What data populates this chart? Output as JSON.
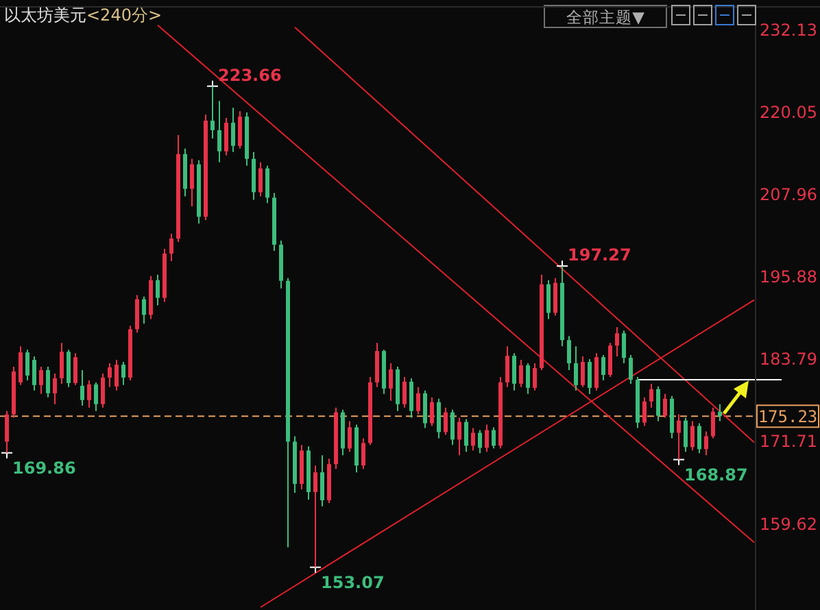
{
  "chart_data": {
    "type": "candlestick",
    "title": "以太坊美元",
    "subtitle": "<240分>",
    "categories": [
      null,
      null,
      null,
      null,
      null,
      null,
      null,
      null,
      null,
      null,
      null,
      null,
      null,
      null,
      null,
      null,
      null,
      null,
      null,
      null,
      null,
      null,
      null,
      null,
      null,
      null,
      null,
      null,
      null,
      null,
      null,
      null,
      null,
      null,
      null,
      null,
      null,
      null,
      null,
      null,
      null,
      null,
      null,
      null,
      null,
      null,
      null,
      null,
      null,
      null,
      null,
      null,
      null,
      null,
      null,
      null,
      null,
      null,
      null,
      null,
      null,
      null,
      null,
      null,
      null,
      null,
      null,
      null,
      null,
      null,
      null,
      null,
      null,
      null,
      null,
      null,
      null,
      null,
      null,
      null,
      null,
      null,
      null,
      null,
      null,
      null,
      null,
      null,
      null,
      null,
      null,
      null,
      null,
      null,
      null,
      null,
      null,
      null,
      null,
      null,
      null,
      null,
      null,
      null,
      null,
      null,
      null,
      null,
      null,
      null,
      null,
      null,
      null,
      null
    ],
    "ohlc": [
      [
        171.5,
        176.0,
        169.86,
        175.5
      ],
      [
        175.5,
        182.5,
        175.0,
        181.8
      ],
      [
        180.2,
        185.5,
        179.8,
        184.6
      ],
      [
        184.6,
        185.0,
        180.5,
        181.2
      ],
      [
        183.5,
        184.0,
        179.0,
        179.8
      ],
      [
        179.8,
        182.5,
        178.5,
        182.0
      ],
      [
        182.0,
        182.5,
        178.0,
        178.6
      ],
      [
        178.6,
        181.5,
        177.0,
        180.8
      ],
      [
        180.8,
        186.0,
        180.0,
        184.7
      ],
      [
        184.7,
        185.0,
        179.5,
        180.1
      ],
      [
        180.1,
        184.5,
        179.8,
        183.9
      ],
      [
        179.7,
        182.0,
        176.8,
        177.6
      ],
      [
        177.6,
        180.5,
        176.5,
        179.9
      ],
      [
        179.9,
        180.2,
        176.0,
        177.0
      ],
      [
        177.0,
        181.5,
        176.5,
        180.9
      ],
      [
        180.9,
        183.0,
        179.5,
        182.4
      ],
      [
        179.6,
        183.5,
        179.0,
        182.8
      ],
      [
        182.8,
        183.2,
        179.8,
        180.9
      ],
      [
        180.9,
        188.5,
        180.5,
        188.0
      ],
      [
        188.0,
        193.0,
        187.5,
        192.4
      ],
      [
        192.4,
        192.8,
        188.8,
        190.1
      ],
      [
        190.1,
        195.8,
        189.5,
        195.2
      ],
      [
        195.2,
        196.0,
        191.5,
        192.6
      ],
      [
        192.6,
        199.8,
        192.0,
        199.1
      ],
      [
        199.1,
        202.0,
        198.0,
        201.3
      ],
      [
        201.3,
        216.5,
        200.8,
        213.7
      ],
      [
        213.7,
        214.5,
        207.5,
        208.6
      ],
      [
        208.6,
        213.0,
        206.0,
        212.2
      ],
      [
        212.2,
        212.8,
        203.5,
        204.5
      ],
      [
        204.5,
        219.5,
        204.0,
        218.6
      ],
      [
        218.6,
        223.66,
        216.0,
        217.2
      ],
      [
        217.2,
        221.5,
        212.5,
        214.1
      ],
      [
        214.1,
        219.0,
        213.5,
        218.3
      ],
      [
        218.3,
        220.5,
        214.0,
        214.9
      ],
      [
        214.9,
        220.0,
        214.5,
        219.2
      ],
      [
        219.2,
        219.8,
        212.0,
        213.0
      ],
      [
        213.0,
        214.0,
        207.0,
        208.1
      ],
      [
        208.1,
        212.5,
        207.5,
        211.6
      ],
      [
        211.6,
        212.0,
        206.5,
        207.3
      ],
      [
        207.3,
        208.0,
        199.5,
        200.4
      ],
      [
        200.4,
        201.0,
        194.0,
        195.1
      ],
      [
        195.1,
        195.5,
        156.0,
        171.5
      ],
      [
        171.5,
        172.3,
        164.0,
        165.3
      ],
      [
        165.3,
        171.0,
        164.5,
        170.2
      ],
      [
        170.2,
        170.8,
        163.0,
        164.1
      ],
      [
        164.1,
        168.0,
        153.07,
        167.0
      ],
      [
        167.0,
        169.5,
        162.0,
        162.9
      ],
      [
        162.9,
        169.0,
        162.5,
        168.2
      ],
      [
        168.2,
        176.5,
        167.5,
        175.8
      ],
      [
        175.8,
        176.2,
        169.5,
        170.5
      ],
      [
        170.5,
        174.5,
        170.0,
        173.6
      ],
      [
        173.6,
        174.0,
        167.0,
        168.0
      ],
      [
        168.0,
        172.0,
        167.5,
        171.3
      ],
      [
        171.3,
        181.0,
        171.0,
        180.2
      ],
      [
        180.2,
        186.0,
        179.5,
        184.8
      ],
      [
        184.8,
        185.0,
        178.5,
        179.3
      ],
      [
        179.3,
        183.0,
        177.5,
        182.1
      ],
      [
        182.1,
        182.5,
        176.0,
        177.0
      ],
      [
        177.0,
        181.0,
        176.5,
        180.3
      ],
      [
        180.3,
        180.8,
        175.0,
        176.0
      ],
      [
        176.0,
        179.5,
        175.5,
        178.6
      ],
      [
        178.6,
        179.0,
        173.5,
        174.2
      ],
      [
        174.2,
        178.0,
        173.8,
        177.3
      ],
      [
        177.3,
        177.8,
        172.0,
        172.9
      ],
      [
        172.9,
        176.5,
        172.5,
        175.8
      ],
      [
        175.8,
        176.2,
        171.0,
        171.8
      ],
      [
        171.8,
        175.0,
        169.5,
        174.4
      ],
      [
        174.4,
        174.8,
        170.0,
        170.9
      ],
      [
        170.9,
        173.5,
        170.2,
        172.8
      ],
      [
        172.8,
        173.2,
        169.8,
        170.6
      ],
      [
        170.6,
        174.0,
        170.0,
        173.2
      ],
      [
        173.2,
        173.6,
        170.5,
        170.9
      ],
      [
        170.9,
        181.0,
        170.5,
        180.2
      ],
      [
        180.2,
        185.5,
        179.5,
        184.1
      ],
      [
        184.1,
        184.5,
        179.0,
        180.0
      ],
      [
        180.0,
        183.5,
        179.5,
        182.7
      ],
      [
        182.7,
        183.0,
        178.5,
        179.4
      ],
      [
        179.4,
        183.0,
        179.0,
        182.3
      ],
      [
        182.3,
        196.0,
        182.0,
        194.6
      ],
      [
        194.6,
        195.2,
        189.5,
        190.4
      ],
      [
        190.4,
        195.5,
        190.0,
        194.8
      ],
      [
        194.8,
        197.27,
        185.5,
        186.4
      ],
      [
        186.4,
        187.0,
        182.0,
        183.0
      ],
      [
        183.0,
        185.5,
        179.0,
        179.8
      ],
      [
        179.8,
        184.0,
        179.5,
        183.2
      ],
      [
        183.2,
        183.6,
        178.5,
        179.4
      ],
      [
        179.4,
        184.5,
        179.0,
        183.9
      ],
      [
        183.9,
        184.2,
        180.5,
        181.3
      ],
      [
        181.3,
        186.0,
        181.0,
        185.6
      ],
      [
        185.6,
        188.3,
        184.0,
        187.4
      ],
      [
        187.4,
        187.8,
        183.0,
        183.8
      ],
      [
        183.8,
        184.2,
        180.0,
        180.6
      ],
      [
        180.6,
        181.0,
        173.5,
        174.3
      ],
      [
        174.3,
        178.0,
        173.8,
        177.4
      ],
      [
        177.4,
        180.0,
        176.5,
        179.2
      ],
      [
        179.2,
        179.6,
        174.5,
        175.3
      ],
      [
        175.3,
        178.5,
        175.0,
        177.8
      ],
      [
        177.8,
        178.2,
        172.0,
        172.8
      ],
      [
        172.8,
        175.5,
        168.87,
        174.6
      ],
      [
        174.6,
        175.0,
        170.0,
        170.7
      ],
      [
        170.7,
        174.5,
        170.2,
        173.8
      ],
      [
        173.8,
        174.2,
        169.8,
        170.4
      ],
      [
        170.4,
        173.0,
        169.5,
        172.3
      ],
      [
        172.3,
        176.5,
        172.0,
        175.9
      ],
      [
        175.9,
        177.0,
        174.5,
        175.23
      ],
      null,
      null,
      null,
      null,
      null,
      null,
      null,
      null,
      null
    ],
    "colors": [
      "#e8334a",
      "#e8334a",
      "#e8334a",
      "#3dbd7d",
      "#3dbd7d",
      "#e8334a",
      "#3dbd7d",
      "#e8334a",
      "#e8334a",
      "#3dbd7d",
      "#e8334a",
      "#3dbd7d",
      "#e8334a",
      "#3dbd7d",
      "#e8334a",
      "#e8334a",
      "#e8334a",
      "#3dbd7d",
      "#e8334a",
      "#e8334a",
      "#3dbd7d",
      "#e8334a",
      "#3dbd7d",
      "#e8334a",
      "#e8334a",
      "#e8334a",
      "#3dbd7d",
      "#e8334a",
      "#3dbd7d",
      "#e8334a",
      "#3dbd7d",
      "#3dbd7d",
      "#e8334a",
      "#3dbd7d",
      "#e8334a",
      "#3dbd7d",
      "#3dbd7d",
      "#e8334a",
      "#3dbd7d",
      "#3dbd7d",
      "#3dbd7d",
      "#3dbd7d",
      "#3dbd7d",
      "#e8334a",
      "#3dbd7d",
      "#e8334a",
      "#3dbd7d",
      "#e8334a",
      "#e8334a",
      "#3dbd7d",
      "#e8334a",
      "#3dbd7d",
      "#e8334a",
      "#e8334a",
      "#e8334a",
      "#3dbd7d",
      "#e8334a",
      "#3dbd7d",
      "#e8334a",
      "#3dbd7d",
      "#e8334a",
      "#3dbd7d",
      "#e8334a",
      "#3dbd7d",
      "#e8334a",
      "#3dbd7d",
      "#e8334a",
      "#3dbd7d",
      "#e8334a",
      "#3dbd7d",
      "#e8334a",
      "#3dbd7d",
      "#e8334a",
      "#e8334a",
      "#3dbd7d",
      "#e8334a",
      "#3dbd7d",
      "#e8334a",
      "#e8334a",
      "#3dbd7d",
      "#e8334a",
      "#3dbd7d",
      "#3dbd7d",
      "#3dbd7d",
      "#e8334a",
      "#3dbd7d",
      "#e8334a",
      "#3dbd7d",
      "#e8334a",
      "#e8334a",
      "#3dbd7d",
      "#3dbd7d",
      "#3dbd7d",
      "#e8334a",
      "#e8334a",
      "#3dbd7d",
      "#e8334a",
      "#3dbd7d",
      "#e8334a",
      "#3dbd7d",
      "#e8334a",
      "#3dbd7d",
      "#e8334a",
      "#e8334a",
      "#3dbd7d",
      null,
      null,
      null,
      null,
      null,
      null,
      null,
      null,
      null
    ],
    "ylim": [
      146.8,
      235.3
    ],
    "yticks": [
      232.13,
      220.05,
      207.96,
      195.88,
      183.79,
      171.71,
      159.62
    ],
    "ref_lines": [
      {
        "axis": "y",
        "value": 175.23,
        "label": "175.23",
        "color": "#e8a060",
        "line_style": "dashed"
      }
    ],
    "series": [
      {
        "type": "line",
        "color": "#e0202a",
        "values": [
          null,
          null,
          null,
          null,
          null,
          null,
          null,
          null,
          null,
          null,
          null,
          null,
          null,
          null,
          null,
          null,
          null,
          null,
          null,
          null,
          null,
          null,
          232.6,
          null,
          null,
          null,
          null,
          null,
          null,
          null,
          null,
          null,
          null,
          null,
          null,
          null,
          null,
          null,
          null,
          null,
          null,
          null,
          null,
          null,
          null,
          null,
          null,
          null,
          null,
          null,
          null,
          null,
          null,
          null,
          null,
          null,
          null,
          null,
          null,
          null,
          null,
          null,
          null,
          null,
          null,
          null,
          null,
          null,
          null,
          null,
          null,
          null,
          null,
          null,
          null,
          null,
          null,
          null,
          null,
          null,
          null,
          null,
          null,
          null,
          null,
          null,
          null,
          null,
          null,
          null,
          null,
          null,
          null,
          null,
          null,
          null,
          null,
          null,
          null,
          null,
          null,
          null,
          null,
          null,
          null,
          null,
          null,
          null,
          null,
          156.7,
          null,
          null,
          null,
          null
        ]
      },
      {
        "type": "line",
        "color": "#e0202a",
        "values": [
          null,
          null,
          null,
          null,
          null,
          null,
          null,
          null,
          null,
          null,
          null,
          null,
          null,
          null,
          null,
          null,
          null,
          null,
          null,
          null,
          null,
          null,
          null,
          null,
          null,
          null,
          null,
          null,
          null,
          null,
          null,
          null,
          null,
          null,
          null,
          null,
          null,
          null,
          null,
          null,
          null,
          null,
          232.3,
          null,
          null,
          null,
          null,
          null,
          null,
          null,
          null,
          null,
          null,
          null,
          null,
          null,
          null,
          null,
          null,
          null,
          null,
          null,
          null,
          null,
          null,
          null,
          null,
          null,
          null,
          null,
          null,
          null,
          null,
          null,
          null,
          null,
          null,
          null,
          null,
          null,
          null,
          null,
          null,
          null,
          null,
          null,
          null,
          null,
          null,
          null,
          null,
          null,
          null,
          null,
          null,
          null,
          null,
          null,
          null,
          null,
          null,
          null,
          null,
          null,
          null,
          null,
          null,
          null,
          null,
          171.4,
          null,
          null,
          null,
          null
        ]
      },
      {
        "type": "line",
        "color": "#e0202a",
        "values": [
          null,
          null,
          null,
          null,
          null,
          null,
          null,
          null,
          null,
          null,
          null,
          null,
          null,
          null,
          null,
          null,
          null,
          null,
          null,
          null,
          null,
          null,
          null,
          null,
          null,
          null,
          null,
          null,
          null,
          null,
          null,
          null,
          null,
          null,
          null,
          null,
          null,
          147.2,
          null,
          null,
          null,
          null,
          null,
          null,
          null,
          null,
          null,
          null,
          null,
          null,
          null,
          null,
          null,
          null,
          null,
          null,
          null,
          null,
          null,
          null,
          null,
          null,
          null,
          null,
          null,
          null,
          null,
          null,
          null,
          null,
          null,
          null,
          null,
          null,
          null,
          null,
          null,
          null,
          null,
          null,
          null,
          null,
          null,
          null,
          null,
          null,
          null,
          null,
          null,
          null,
          null,
          null,
          null,
          null,
          null,
          null,
          null,
          null,
          null,
          null,
          null,
          null,
          null,
          null,
          null,
          null,
          null,
          null,
          null,
          192.3,
          null,
          null,
          null,
          null
        ]
      },
      {
        "type": "line",
        "color": "#ffffff",
        "values": [
          null,
          null,
          null,
          null,
          null,
          null,
          null,
          null,
          null,
          null,
          null,
          null,
          null,
          null,
          null,
          null,
          null,
          null,
          null,
          null,
          null,
          null,
          null,
          null,
          null,
          null,
          null,
          null,
          null,
          null,
          null,
          null,
          null,
          null,
          null,
          null,
          null,
          null,
          null,
          null,
          null,
          null,
          null,
          null,
          null,
          null,
          null,
          null,
          null,
          null,
          null,
          null,
          null,
          null,
          null,
          null,
          null,
          null,
          null,
          null,
          null,
          null,
          null,
          null,
          null,
          null,
          null,
          null,
          null,
          null,
          null,
          null,
          null,
          null,
          null,
          null,
          null,
          null,
          null,
          null,
          null,
          null,
          null,
          null,
          null,
          null,
          null,
          null,
          null,
          null,
          null,
          null,
          180.6,
          null,
          null,
          null,
          null,
          null,
          null,
          null,
          null,
          null,
          null,
          null,
          null,
          null,
          null,
          null,
          null,
          null,
          null,
          null,
          null,
          180.6
        ]
      }
    ],
    "annotations": [
      "223.66",
      "197.27",
      "169.86",
      "153.07",
      "168.87",
      "全部主题▼"
    ]
  }
}
